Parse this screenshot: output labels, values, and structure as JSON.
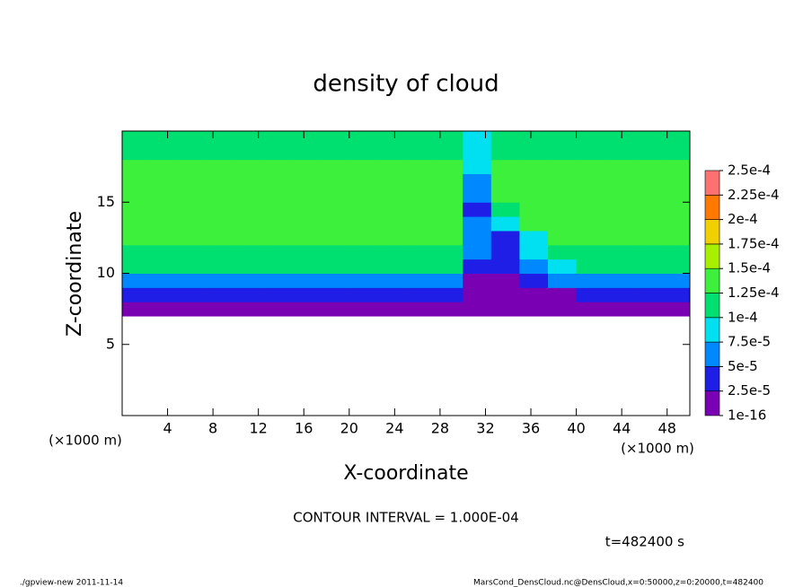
{
  "chart_data": {
    "type": "contourf",
    "title": "density of cloud",
    "x_label": "X-coordinate",
    "y_label": "Z-coordinate",
    "x_unit": "(×1000 m)",
    "y_unit": "(×1000 m)",
    "contour_note": "CONTOUR INTERVAL = 1.000E-04",
    "time_label": "t=482400 s",
    "footer_left": "./gpview-new  2011-11-14",
    "footer_right": "MarsCond_DensCloud.nc@DensCloud,x=0:50000,z=0:20000,t=482400",
    "xlim": [
      0,
      50
    ],
    "ylim": [
      0,
      20
    ],
    "xticks": [
      4,
      8,
      12,
      16,
      20,
      24,
      28,
      32,
      36,
      40,
      44,
      48
    ],
    "yticks": [
      5,
      10,
      15
    ],
    "x": [
      1.25,
      3.75,
      6.25,
      8.75,
      11.25,
      13.75,
      16.25,
      18.75,
      21.25,
      23.75,
      26.25,
      28.75,
      31.25,
      33.75,
      36.25,
      38.75,
      41.25,
      43.75,
      46.25,
      48.75
    ],
    "y": [
      0.5,
      1.5,
      2.5,
      3.5,
      4.5,
      5.5,
      6.5,
      7.5,
      8.5,
      9.5,
      10.5,
      11.5,
      12.5,
      13.5,
      14.5,
      15.5,
      16.5,
      17.5,
      18.5,
      19.5
    ],
    "levels": [
      {
        "value": 1e-16,
        "label": "1e-16"
      },
      {
        "value": 2.5e-05,
        "label": "2.5e-5"
      },
      {
        "value": 5e-05,
        "label": "5e-5"
      },
      {
        "value": 7.5e-05,
        "label": "7.5e-5"
      },
      {
        "value": 0.0001,
        "label": "1e-4"
      },
      {
        "value": 0.000125,
        "label": "1.25e-4"
      },
      {
        "value": 0.00015,
        "label": "1.5e-4"
      },
      {
        "value": 0.000175,
        "label": "1.75e-4"
      },
      {
        "value": 0.0002,
        "label": "2e-4"
      },
      {
        "value": 0.000225,
        "label": "2.25e-4"
      },
      {
        "value": 0.00025,
        "label": "2.5e-4"
      }
    ],
    "colors": [
      "#7a00b4",
      "#1e1ee6",
      "#0088ff",
      "#00e0f0",
      "#00e070",
      "#3cf03c",
      "#a8f000",
      "#f0d000",
      "#ff7800",
      "#ff7070"
    ],
    "z": [
      [
        null,
        null,
        null,
        null,
        null,
        null,
        null,
        null,
        null,
        null,
        null,
        null,
        null,
        null,
        null,
        null,
        null,
        null,
        null,
        null
      ],
      [
        null,
        null,
        null,
        null,
        null,
        null,
        null,
        null,
        null,
        null,
        null,
        null,
        null,
        null,
        null,
        null,
        null,
        null,
        null,
        null
      ],
      [
        null,
        null,
        null,
        null,
        null,
        null,
        null,
        null,
        null,
        null,
        null,
        null,
        null,
        null,
        null,
        null,
        null,
        null,
        null,
        null
      ],
      [
        null,
        null,
        null,
        null,
        null,
        null,
        null,
        null,
        null,
        null,
        null,
        null,
        null,
        null,
        null,
        null,
        null,
        null,
        null,
        null
      ],
      [
        null,
        null,
        null,
        null,
        null,
        null,
        null,
        null,
        null,
        null,
        null,
        null,
        null,
        null,
        null,
        null,
        null,
        null,
        null,
        null
      ],
      [
        null,
        null,
        null,
        null,
        null,
        null,
        null,
        null,
        null,
        null,
        null,
        null,
        null,
        null,
        null,
        null,
        null,
        null,
        null,
        null
      ],
      [
        null,
        null,
        null,
        null,
        null,
        null,
        null,
        null,
        null,
        null,
        null,
        null,
        null,
        null,
        null,
        null,
        null,
        null,
        null,
        null
      ],
      [
        1e-05,
        1e-05,
        1e-05,
        1e-05,
        1e-05,
        1e-05,
        1e-05,
        1e-05,
        1e-05,
        1e-05,
        1e-05,
        1e-05,
        1e-05,
        1e-05,
        1e-05,
        1e-05,
        1e-05,
        1e-05,
        1e-05,
        1e-05
      ],
      [
        3e-05,
        3e-05,
        3e-05,
        3e-05,
        3e-05,
        3e-05,
        3e-05,
        3e-05,
        3e-05,
        3e-05,
        3e-05,
        3e-05,
        1.5e-05,
        1.5e-05,
        2e-05,
        2e-05,
        3e-05,
        3e-05,
        3e-05,
        3e-05
      ],
      [
        7e-05,
        7e-05,
        7e-05,
        7e-05,
        7e-05,
        7e-05,
        7e-05,
        7e-05,
        7e-05,
        7e-05,
        7e-05,
        7e-05,
        2e-05,
        2e-05,
        3e-05,
        5e-05,
        7e-05,
        7e-05,
        7e-05,
        7e-05
      ],
      [
        0.00011,
        0.00011,
        0.00011,
        0.00011,
        0.00011,
        0.00011,
        0.00011,
        0.00011,
        0.00011,
        0.00011,
        0.00011,
        0.00011,
        3e-05,
        4e-05,
        6e-05,
        9e-05,
        0.00011,
        0.00011,
        0.00011,
        0.00011
      ],
      [
        0.00012,
        0.00012,
        0.00012,
        0.00012,
        0.00012,
        0.00012,
        0.00012,
        0.00012,
        0.00012,
        0.00012,
        0.00012,
        0.00012,
        5e-05,
        4e-05,
        8e-05,
        0.00011,
        0.00012,
        0.00012,
        0.00012,
        0.00012
      ],
      [
        0.00013,
        0.00013,
        0.00013,
        0.00013,
        0.00013,
        0.00013,
        0.00013,
        0.00013,
        0.00013,
        0.00013,
        0.00013,
        0.00013,
        7e-05,
        4e-05,
        9e-05,
        0.00013,
        0.00013,
        0.00013,
        0.00013,
        0.00013
      ],
      [
        0.000135,
        0.000135,
        0.000135,
        0.000135,
        0.000135,
        0.000135,
        0.000135,
        0.000135,
        0.000135,
        0.000135,
        0.000135,
        0.000135,
        5e-05,
        9e-05,
        0.000135,
        0.000135,
        0.000135,
        0.000135,
        0.000135,
        0.000135
      ],
      [
        0.000135,
        0.000135,
        0.000135,
        0.000135,
        0.000135,
        0.000135,
        0.000135,
        0.000135,
        0.000135,
        0.000135,
        0.000135,
        0.000135,
        4e-05,
        0.00012,
        0.000135,
        0.000135,
        0.000135,
        0.000135,
        0.000135,
        0.000135
      ],
      [
        0.00013,
        0.00013,
        0.00013,
        0.00013,
        0.00013,
        0.00013,
        0.00013,
        0.00013,
        0.00013,
        0.00013,
        0.00013,
        0.00013,
        5e-05,
        0.00013,
        0.00013,
        0.00013,
        0.00013,
        0.00013,
        0.00013,
        0.00013
      ],
      [
        0.00013,
        0.00013,
        0.00013,
        0.00013,
        0.00013,
        0.00013,
        0.00013,
        0.00013,
        0.00013,
        0.00013,
        0.00013,
        0.00013,
        7e-05,
        0.00013,
        0.00013,
        0.00013,
        0.00013,
        0.00013,
        0.00013,
        0.00013
      ],
      [
        0.00013,
        0.00013,
        0.00013,
        0.00013,
        0.00013,
        0.00013,
        0.00013,
        0.00013,
        0.00013,
        0.00013,
        0.00013,
        0.00013,
        8e-05,
        0.00013,
        0.00013,
        0.00013,
        0.00013,
        0.00013,
        0.00013,
        0.00013
      ],
      [
        0.00012,
        0.00012,
        0.00012,
        0.00012,
        0.00012,
        0.00012,
        0.00012,
        0.00012,
        0.00012,
        0.00012,
        0.00012,
        0.00012,
        9e-05,
        0.00012,
        0.00012,
        0.00012,
        0.00012,
        0.00012,
        0.00012,
        0.00012
      ],
      [
        0.000115,
        0.000115,
        0.000115,
        0.000115,
        0.000115,
        0.000115,
        0.000115,
        0.000115,
        0.000115,
        0.000115,
        0.000115,
        0.000115,
        8e-05,
        0.000115,
        0.000115,
        0.000115,
        0.000115,
        0.000115,
        0.000115,
        0.000115
      ]
    ]
  }
}
